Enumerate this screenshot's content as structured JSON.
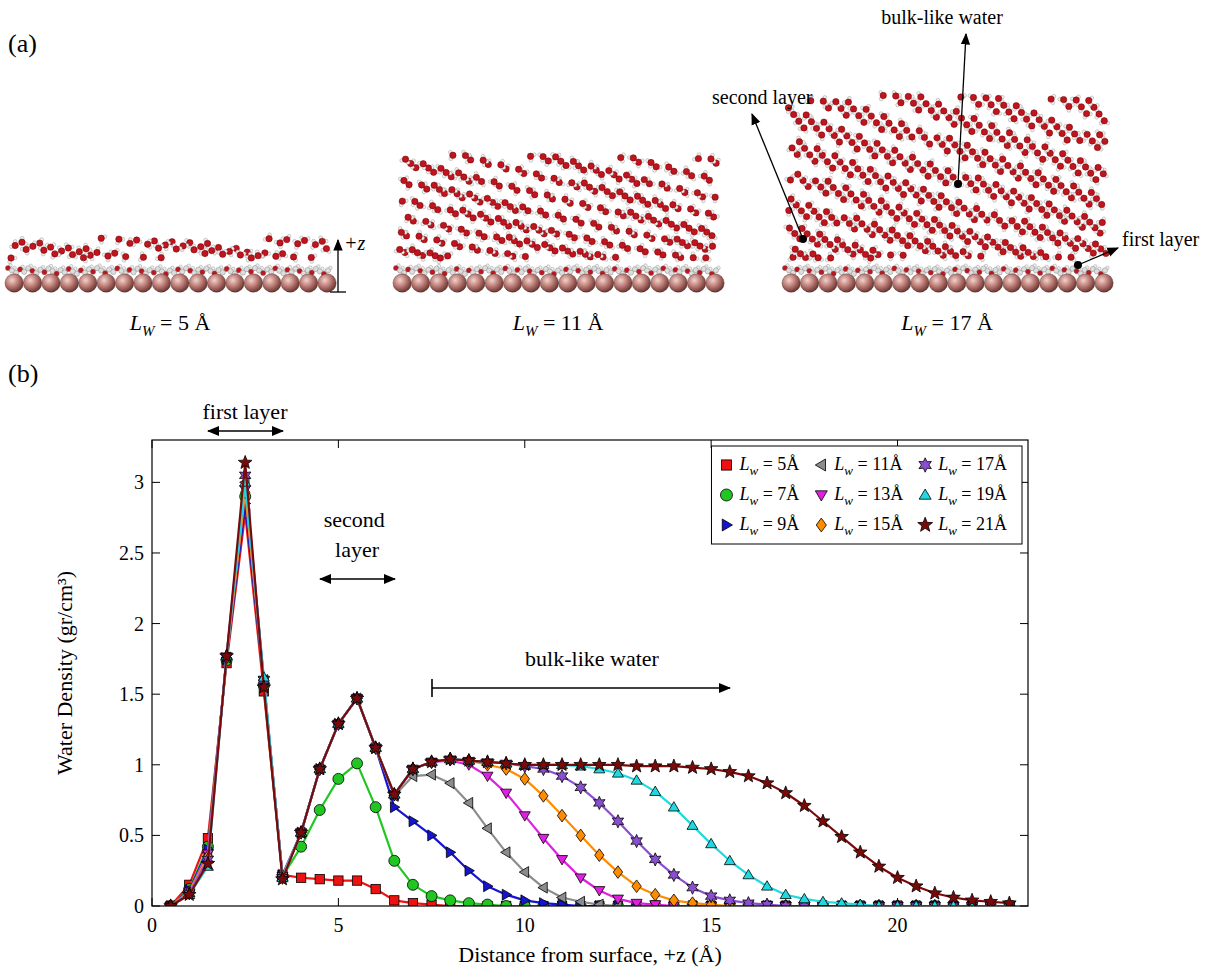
{
  "panel_labels": [
    "(a)",
    "(b)"
  ],
  "panel_a": {
    "snapshots": [
      "LW = 5 Å",
      "LW = 11 Å",
      "LW = 17 Å"
    ],
    "axis_label": "+z",
    "annotations": [
      "second layer",
      "bulk-like water",
      "first layer"
    ]
  },
  "chart_data": {
    "type": "line",
    "x_label": "Distance from surface, +z (Å)",
    "y_label": "Water Density (gr/cm³)",
    "annotations": [
      "first layer",
      "second layer",
      "bulk-like water"
    ],
    "xlim": [
      0,
      23.5
    ],
    "ylim": [
      0,
      3.3
    ],
    "xticks": [
      0,
      5,
      10,
      15,
      20
    ],
    "yticks": [
      0,
      0.5,
      1,
      1.5,
      2,
      2.5,
      3
    ],
    "grid": false,
    "legend": "top-right",
    "x": [
      0.5,
      1,
      1.5,
      2,
      2.5,
      3,
      3.5,
      4,
      4.5,
      5,
      5.5,
      6,
      6.5,
      7,
      7.5,
      8,
      8.5,
      9,
      9.5,
      10,
      10.5,
      11,
      11.5,
      12,
      12.5,
      13,
      13.5,
      14,
      14.5,
      15,
      15.5,
      16,
      16.5,
      17,
      17.5,
      18,
      18.5,
      19,
      19.5,
      20,
      20.5,
      21,
      21.5,
      22,
      22.5,
      23
    ],
    "series": [
      {
        "name": "Lw = 5Å",
        "color": "#ee1111",
        "marker": "square",
        "values": [
          0,
          0.15,
          0.48,
          1.72,
          2.78,
          1.52,
          0.22,
          0.2,
          0.19,
          0.18,
          0.18,
          0.12,
          0.04,
          0.02,
          0.01,
          0,
          0,
          0,
          0,
          0,
          0,
          0,
          0,
          0,
          0,
          0,
          0,
          0,
          0,
          0,
          0,
          0,
          0,
          0,
          0,
          0,
          0,
          0,
          0,
          0,
          0,
          0,
          0,
          0,
          0,
          0
        ]
      },
      {
        "name": "Lw = 7Å",
        "color": "#22c622",
        "marker": "circle",
        "values": [
          0,
          0.12,
          0.42,
          1.74,
          2.9,
          1.56,
          0.21,
          0.42,
          0.68,
          0.9,
          1.01,
          0.7,
          0.32,
          0.15,
          0.07,
          0.04,
          0.02,
          0.01,
          0,
          0,
          0,
          0,
          0,
          0,
          0,
          0,
          0,
          0,
          0,
          0,
          0,
          0,
          0,
          0,
          0,
          0,
          0,
          0,
          0,
          0,
          0,
          0,
          0,
          0,
          0,
          0
        ]
      },
      {
        "name": "Lw = 9Å",
        "color": "#1515d0",
        "marker": "triangle-right",
        "values": [
          0,
          0.11,
          0.4,
          1.75,
          2.85,
          1.58,
          0.22,
          0.52,
          0.97,
          1.29,
          1.47,
          1.12,
          0.7,
          0.6,
          0.5,
          0.38,
          0.25,
          0.14,
          0.08,
          0.04,
          0.02,
          0.01,
          0,
          0,
          0,
          0,
          0,
          0,
          0,
          0,
          0,
          0,
          0,
          0,
          0,
          0,
          0,
          0,
          0,
          0,
          0,
          0,
          0,
          0,
          0,
          0
        ]
      },
      {
        "name": "Lw = 11Å",
        "color": "#8c8c8c",
        "marker": "triangle-left",
        "values": [
          0,
          0.1,
          0.38,
          1.76,
          3,
          1.6,
          0.21,
          0.52,
          0.97,
          1.29,
          1.47,
          1.12,
          0.78,
          0.92,
          0.93,
          0.87,
          0.73,
          0.55,
          0.38,
          0.24,
          0.13,
          0.06,
          0.03,
          0.01,
          0,
          0,
          0,
          0,
          0,
          0,
          0,
          0,
          0,
          0,
          0,
          0,
          0,
          0,
          0,
          0,
          0,
          0,
          0,
          0,
          0,
          0
        ]
      },
      {
        "name": "Lw = 13Å",
        "color": "#e020e0",
        "marker": "triangle-down",
        "values": [
          0,
          0.1,
          0.37,
          1.76,
          2.95,
          1.6,
          0.21,
          0.52,
          0.97,
          1.29,
          1.47,
          1.12,
          0.79,
          0.97,
          1.02,
          1.03,
          1,
          0.92,
          0.8,
          0.64,
          0.48,
          0.33,
          0.2,
          0.11,
          0.05,
          0.02,
          0.01,
          0,
          0,
          0,
          0,
          0,
          0,
          0,
          0,
          0,
          0,
          0,
          0,
          0,
          0,
          0,
          0,
          0,
          0,
          0
        ]
      },
      {
        "name": "Lw = 15Å",
        "color": "#ff8c00",
        "marker": "diamond",
        "values": [
          0,
          0.1,
          0.35,
          1.76,
          2.93,
          1.6,
          0.21,
          0.52,
          0.97,
          1.29,
          1.47,
          1.12,
          0.79,
          0.97,
          1.02,
          1.04,
          1.03,
          1,
          0.97,
          0.9,
          0.78,
          0.64,
          0.5,
          0.36,
          0.24,
          0.14,
          0.08,
          0.04,
          0.02,
          0.01,
          0,
          0,
          0,
          0,
          0,
          0,
          0,
          0,
          0,
          0,
          0,
          0,
          0,
          0,
          0,
          0
        ]
      },
      {
        "name": "Lw = 17Å",
        "color": "#8a4fd0",
        "marker": "hexagram",
        "values": [
          0,
          0.09,
          0.33,
          1.77,
          3.05,
          1.6,
          0.2,
          0.52,
          0.97,
          1.29,
          1.47,
          1.12,
          0.79,
          0.97,
          1.02,
          1.04,
          1.03,
          1.02,
          1.01,
          0.99,
          0.97,
          0.92,
          0.84,
          0.73,
          0.6,
          0.46,
          0.33,
          0.22,
          0.13,
          0.07,
          0.04,
          0.02,
          0.01,
          0,
          0,
          0,
          0,
          0,
          0,
          0,
          0,
          0,
          0,
          0,
          0,
          0
        ]
      },
      {
        "name": "Lw = 19Å",
        "color": "#20d8e0",
        "marker": "triangle-up",
        "values": [
          0,
          0.08,
          0.28,
          1.77,
          3,
          1.62,
          0.2,
          0.52,
          0.97,
          1.29,
          1.47,
          1.12,
          0.79,
          0.97,
          1.02,
          1.04,
          1.03,
          1.02,
          1.01,
          1,
          1,
          1,
          0.99,
          0.97,
          0.94,
          0.89,
          0.81,
          0.7,
          0.57,
          0.44,
          0.32,
          0.22,
          0.14,
          0.08,
          0.05,
          0.03,
          0.02,
          0.01,
          0,
          0,
          0,
          0,
          0,
          0,
          0,
          0
        ]
      },
      {
        "name": "Lw = 21Å",
        "color": "#7a0a0a",
        "marker": "star",
        "values": [
          0,
          0.08,
          0.3,
          1.77,
          3.14,
          1.55,
          0.19,
          0.52,
          0.97,
          1.29,
          1.47,
          1.12,
          0.79,
          0.97,
          1.02,
          1.04,
          1.03,
          1.02,
          1.01,
          1,
          1,
          1,
          1,
          1,
          1,
          0.99,
          0.99,
          0.99,
          0.98,
          0.97,
          0.95,
          0.92,
          0.87,
          0.8,
          0.71,
          0.6,
          0.49,
          0.38,
          0.28,
          0.2,
          0.14,
          0.09,
          0.06,
          0.04,
          0.03,
          0.02
        ]
      }
    ]
  }
}
